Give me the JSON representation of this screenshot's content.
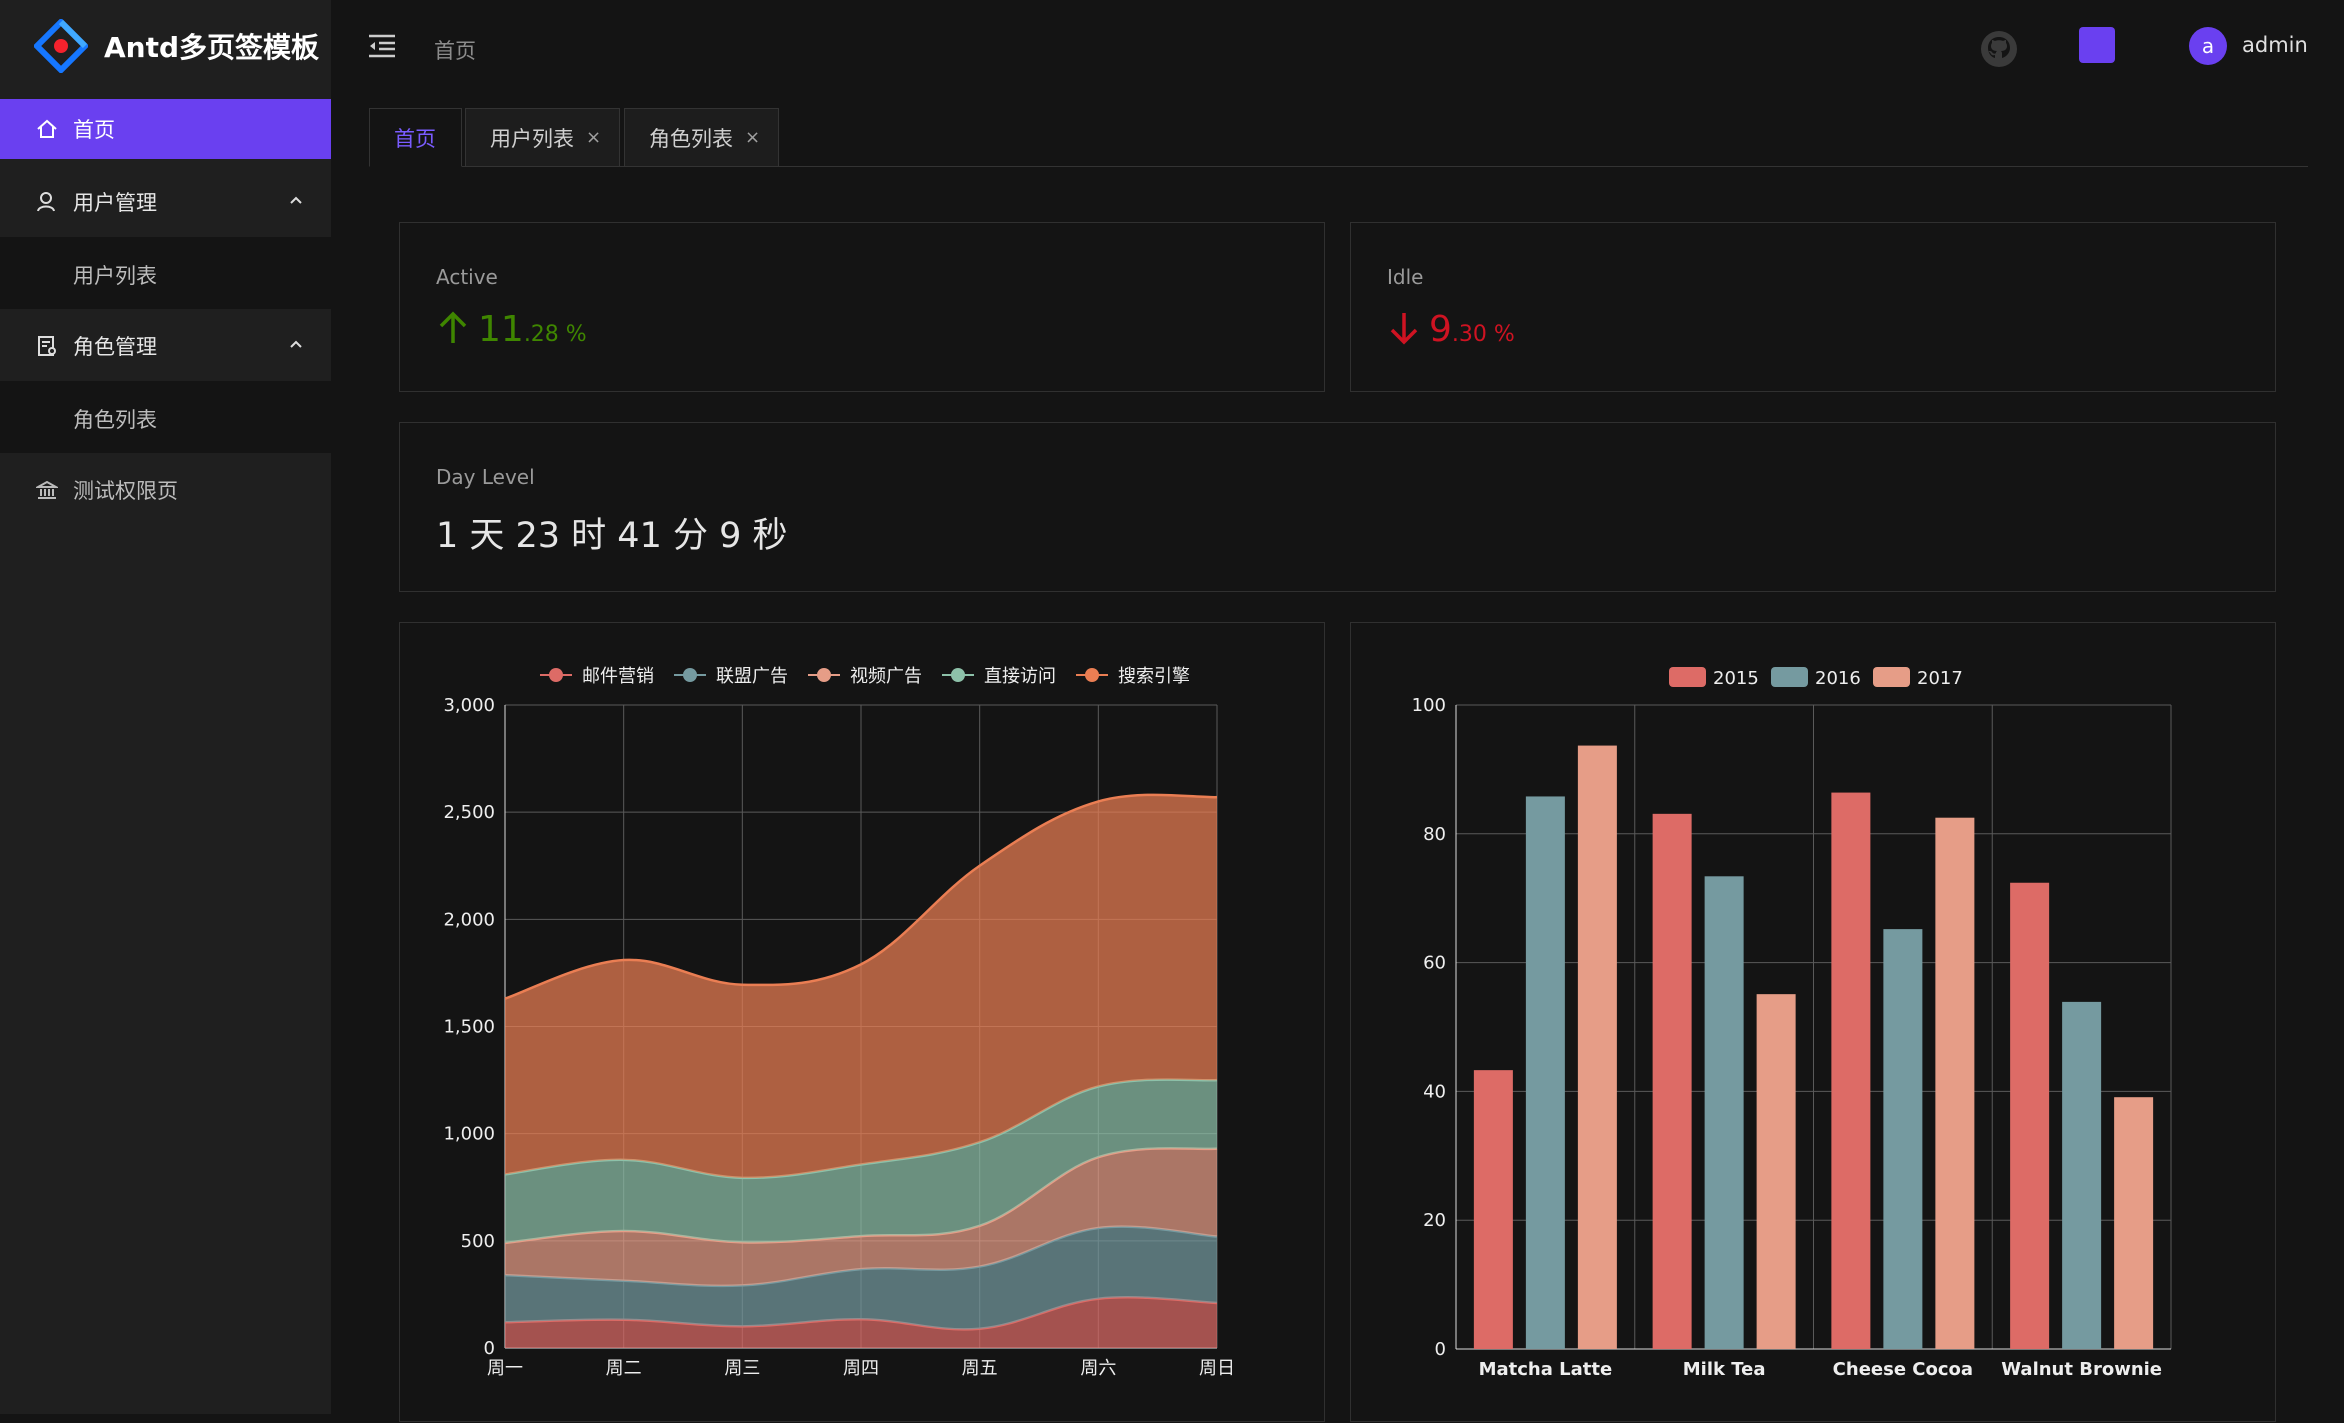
{
  "app": {
    "title": "Antd多页签模板"
  },
  "sidebar": {
    "items": [
      {
        "label": "首页",
        "icon": "home-icon"
      },
      {
        "label": "用户管理",
        "icon": "user-icon"
      },
      {
        "label": "用户列表"
      },
      {
        "label": "角色管理",
        "icon": "role-icon"
      },
      {
        "label": "角色列表"
      },
      {
        "label": "测试权限页",
        "icon": "bank-icon"
      }
    ]
  },
  "header": {
    "breadcrumb": "首页",
    "username": "admin",
    "avatar_letter": "a"
  },
  "tabs": [
    {
      "label": "首页"
    },
    {
      "label": "用户列表",
      "close": "×"
    },
    {
      "label": "角色列表",
      "close": "×"
    }
  ],
  "stats": {
    "active": {
      "title": "Active",
      "int": "11",
      "dec": ".28 %",
      "color": "#3f8600"
    },
    "idle": {
      "title": "Idle",
      "int": "9",
      "dec": ".30 %",
      "color": "#cf1322"
    },
    "daylevel": {
      "title": "Day Level",
      "value": "1 天 23 时 41 分 9 秒"
    }
  },
  "colors": {
    "accent": "#6a40f0"
  },
  "chart_data": [
    {
      "type": "area",
      "stacked": true,
      "smooth": true,
      "categories": [
        "周一",
        "周二",
        "周三",
        "周四",
        "周五",
        "周六",
        "周日"
      ],
      "ylim": [
        0,
        3000
      ],
      "yticks": [
        "0",
        "500",
        "1,000",
        "1,500",
        "2,000",
        "2,500",
        "3,000"
      ],
      "legend_position": "top-center",
      "grid": true,
      "series": [
        {
          "name": "邮件营销",
          "values": [
            120,
            132,
            101,
            134,
            90,
            230,
            210
          ],
          "color": "#dd6b66"
        },
        {
          "name": "联盟广告",
          "values": [
            220,
            182,
            191,
            234,
            290,
            330,
            310
          ],
          "color": "#759aa0"
        },
        {
          "name": "视频广告",
          "values": [
            150,
            232,
            201,
            154,
            190,
            330,
            410
          ],
          "color": "#e69d87"
        },
        {
          "name": "直接访问",
          "values": [
            320,
            332,
            301,
            334,
            390,
            330,
            320
          ],
          "color": "#8dc1a9"
        },
        {
          "name": "搜索引擎",
          "values": [
            820,
            932,
            901,
            934,
            1290,
            1330,
            1320
          ],
          "color": "#ea7e53"
        }
      ]
    },
    {
      "type": "bar",
      "categories": [
        "Matcha Latte",
        "Milk Tea",
        "Cheese Cocoa",
        "Walnut Brownie"
      ],
      "ylim": [
        0,
        100
      ],
      "yticks": [
        "0",
        "20",
        "40",
        "60",
        "80",
        "100"
      ],
      "legend_position": "top-center",
      "grid": true,
      "series": [
        {
          "name": "2015",
          "values": [
            43.3,
            83.1,
            86.4,
            72.4
          ],
          "color": "#dd6b66"
        },
        {
          "name": "2016",
          "values": [
            85.8,
            73.4,
            65.2,
            53.9
          ],
          "color": "#759aa0"
        },
        {
          "name": "2017",
          "values": [
            93.7,
            55.1,
            82.5,
            39.1
          ],
          "color": "#e69d87"
        }
      ]
    }
  ]
}
